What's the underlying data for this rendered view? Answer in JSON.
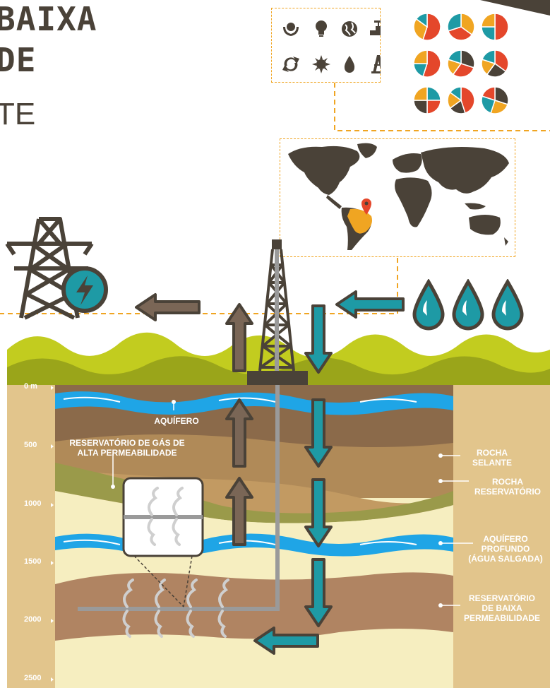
{
  "title": {
    "line1": "BAIXA",
    "line2": "DE",
    "line3": "TE"
  },
  "icons": [
    "hands-globe-icon",
    "lightbulb-icon",
    "globe-icon",
    "valve-icon",
    "recycle-icon",
    "sun-icon",
    "drop-icon",
    "rig-icon"
  ],
  "depth_ticks": [
    "0 m",
    "500",
    "1000",
    "1500",
    "2000",
    "2500"
  ],
  "labels": {
    "aquifer": "AQUÍFERO",
    "high_perm": "RESERVATÓRIO DE GÁS DE\nALTA PERMEABILIDADE",
    "seal_rock": "ROCHA\nSELANTE",
    "reservoir_rock": "ROCHA\nRESERVATÓRIO",
    "deep_aquifer": "AQUÍFERO\nPROFUNDO\n(ÁGUA SALGADA)",
    "low_perm": "RESERVATÓRIO\nDE BAIXA\nPERMEABILIDADE"
  },
  "colors": {
    "accent_orange": "#f0a522",
    "teal": "#1e9aa5",
    "dark_brown": "#4a4238",
    "grass": "#c2cc1f",
    "grass_dark": "#9aa51a",
    "water": "#1fa5e6",
    "sand": "#e2c58c",
    "red": "#e4472b"
  }
}
